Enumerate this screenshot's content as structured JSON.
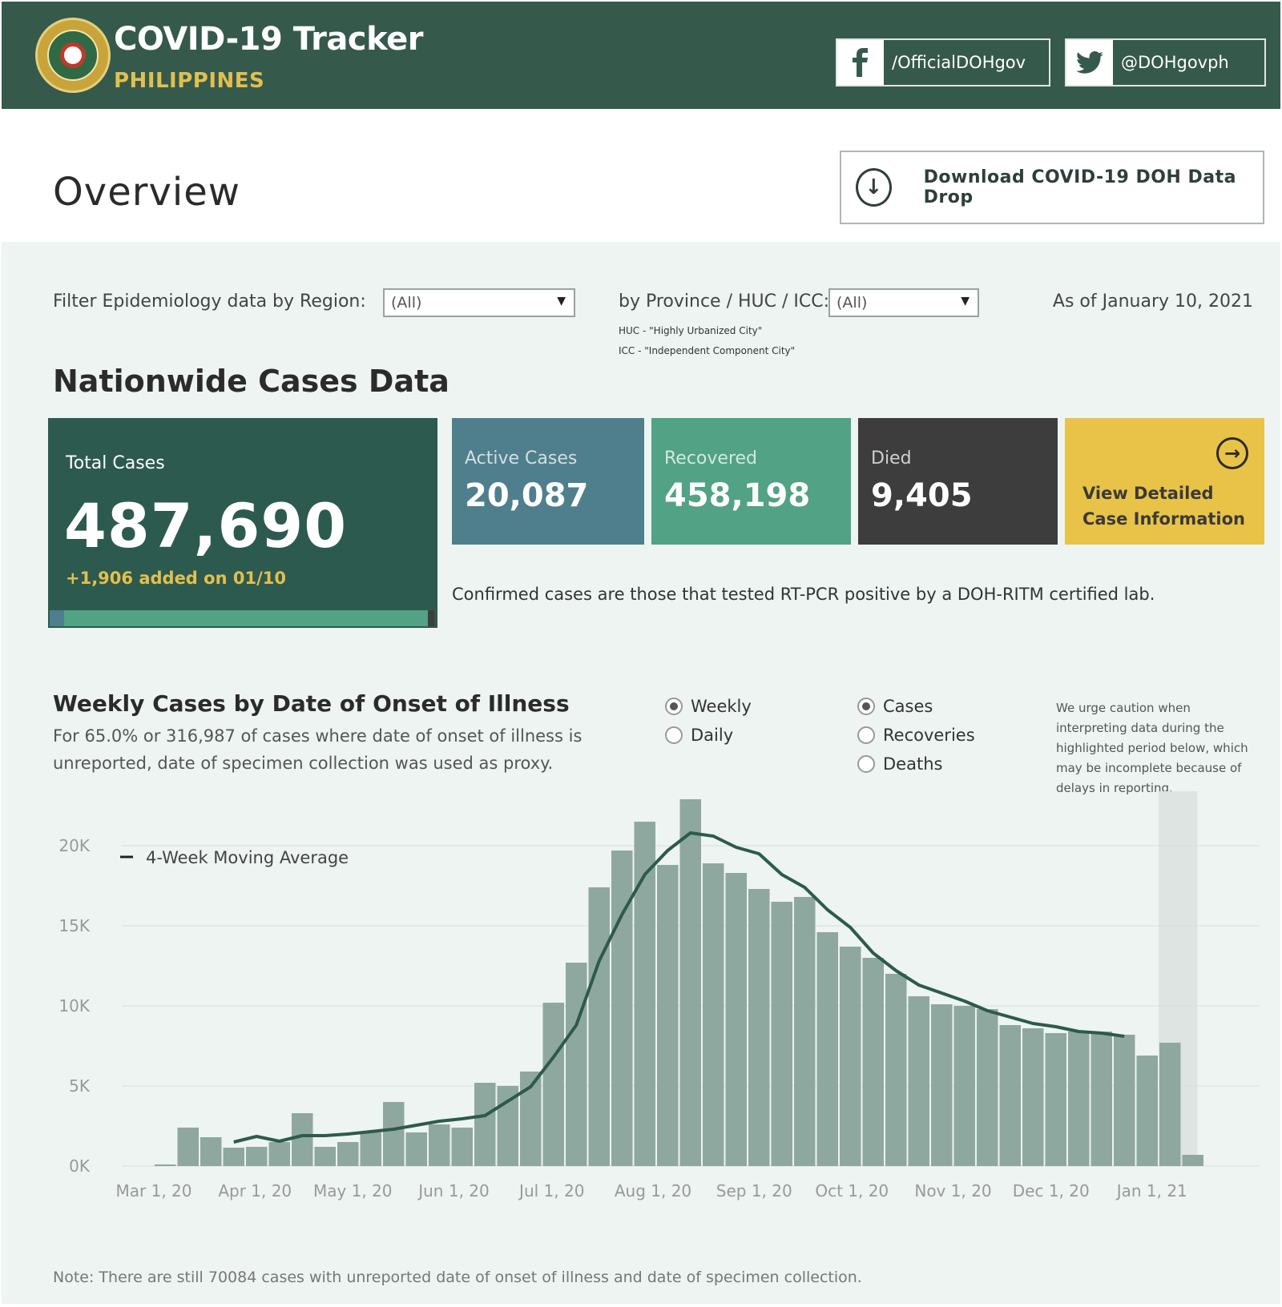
{
  "header": {
    "title": "COVID-19 Tracker",
    "subtitle": "PHILIPPINES",
    "facebook_handle": "/OfficialDOHgov",
    "twitter_handle": "@DOHgovph",
    "facebook_icon": "facebook-icon",
    "twitter_icon": "twitter-icon",
    "background": "#355a4c",
    "accent": "#e3bf4e"
  },
  "overview": {
    "title": "Overview",
    "download_label": "Download COVID-19 DOH Data Drop"
  },
  "filters": {
    "region_label": "Filter Epidemiology data by Region:",
    "region_value": "(All)",
    "province_label": "by Province / HUC / ICC:",
    "province_value": "(All)",
    "huc_note": "HUC - \"Highly Urbanized City\"",
    "icc_note": "ICC - \"Independent Component City\"",
    "as_of": "As of January 10, 2021"
  },
  "nationwide": {
    "title": "Nationwide Cases Data",
    "total_label": "Total Cases",
    "total_value": "487,690",
    "total_added": "+1,906 added on 01/10",
    "active_label": "Active Cases",
    "active_value": "20,087",
    "recovered_label": "Recovered",
    "recovered_value": "458,198",
    "died_label": "Died",
    "died_value": "9,405",
    "detail_line1": "View Detailed",
    "detail_line2": "Case Information",
    "confirmed_note": "Confirmed cases are those that tested RT-PCR positive by a DOH-RITM certified lab.",
    "colors": {
      "total": "#2d5a4e",
      "active": "#4f7f8c",
      "recovered": "#52a285",
      "died": "#3d3d3d",
      "detail": "#e9c347"
    }
  },
  "weekly_section": {
    "title": "Weekly Cases by Date of Onset of Illness",
    "description": "For 65.0% or 316,987 of cases where date of onset of illness is unreported, date of specimen collection was used as proxy.",
    "period_options": [
      {
        "label": "Weekly",
        "selected": true
      },
      {
        "label": "Daily",
        "selected": false
      }
    ],
    "measure_options": [
      {
        "label": "Cases",
        "selected": true
      },
      {
        "label": "Recoveries",
        "selected": false
      },
      {
        "label": "Deaths",
        "selected": false
      }
    ],
    "caution": "We urge caution when interpreting data during the highlighted period below, which may be incomplete because of delays in reporting.",
    "footnote": "Note: There are still 70084 cases with unreported date of onset of illness and date of specimen collection."
  },
  "chart_data": {
    "type": "bar",
    "title": "Weekly Cases by Date of Onset of Illness",
    "x_tick_labels": [
      "Mar 1, 20",
      "Apr 1, 20",
      "May 1, 20",
      "Jun 1, 20",
      "Jul 1, 20",
      "Aug 1, 20",
      "Sep 1, 20",
      "Oct 1, 20",
      "Nov 1, 20",
      "Dec 1, 20",
      "Jan 1, 21"
    ],
    "y_tick_labels": [
      "0K",
      "5K",
      "10K",
      "15K",
      "20K"
    ],
    "ylim": [
      0,
      24000
    ],
    "grid": true,
    "legend_position": "top-left",
    "bar_color": "#8fa89f",
    "line_color": "#2d5a4e",
    "highlight_color": "#dde4e2",
    "highlighted_period": "last two weeks",
    "series": [
      {
        "kind": "bar",
        "values": [
          100,
          2400,
          1800,
          1150,
          1200,
          1500,
          3300,
          1200,
          1500,
          2100,
          4000,
          2100,
          2600,
          2400,
          5200,
          5000,
          5900,
          10200,
          12700,
          17400,
          19700,
          21500,
          18800,
          22900,
          18900,
          18300,
          17300,
          16500,
          16800,
          14600,
          13700,
          13000,
          12000,
          10600,
          10100,
          10000,
          9800,
          8800,
          8600,
          8300,
          8400,
          8400,
          8200,
          6900,
          7700,
          700
        ]
      },
      {
        "kind": "line",
        "name": "4-Week Moving Average",
        "start_index": 3,
        "values": [
          1500,
          1850,
          1550,
          1900,
          1900,
          2000,
          2150,
          2300,
          2550,
          2800,
          2950,
          3150,
          4050,
          4950,
          6800,
          8800,
          12800,
          15700,
          18200,
          19700,
          20800,
          20600,
          19900,
          19500,
          18200,
          17400,
          16000,
          14900,
          13300,
          12200,
          11300,
          10800,
          10300,
          9700,
          9300,
          8900,
          8700,
          8400,
          8300,
          8100
        ]
      }
    ]
  }
}
